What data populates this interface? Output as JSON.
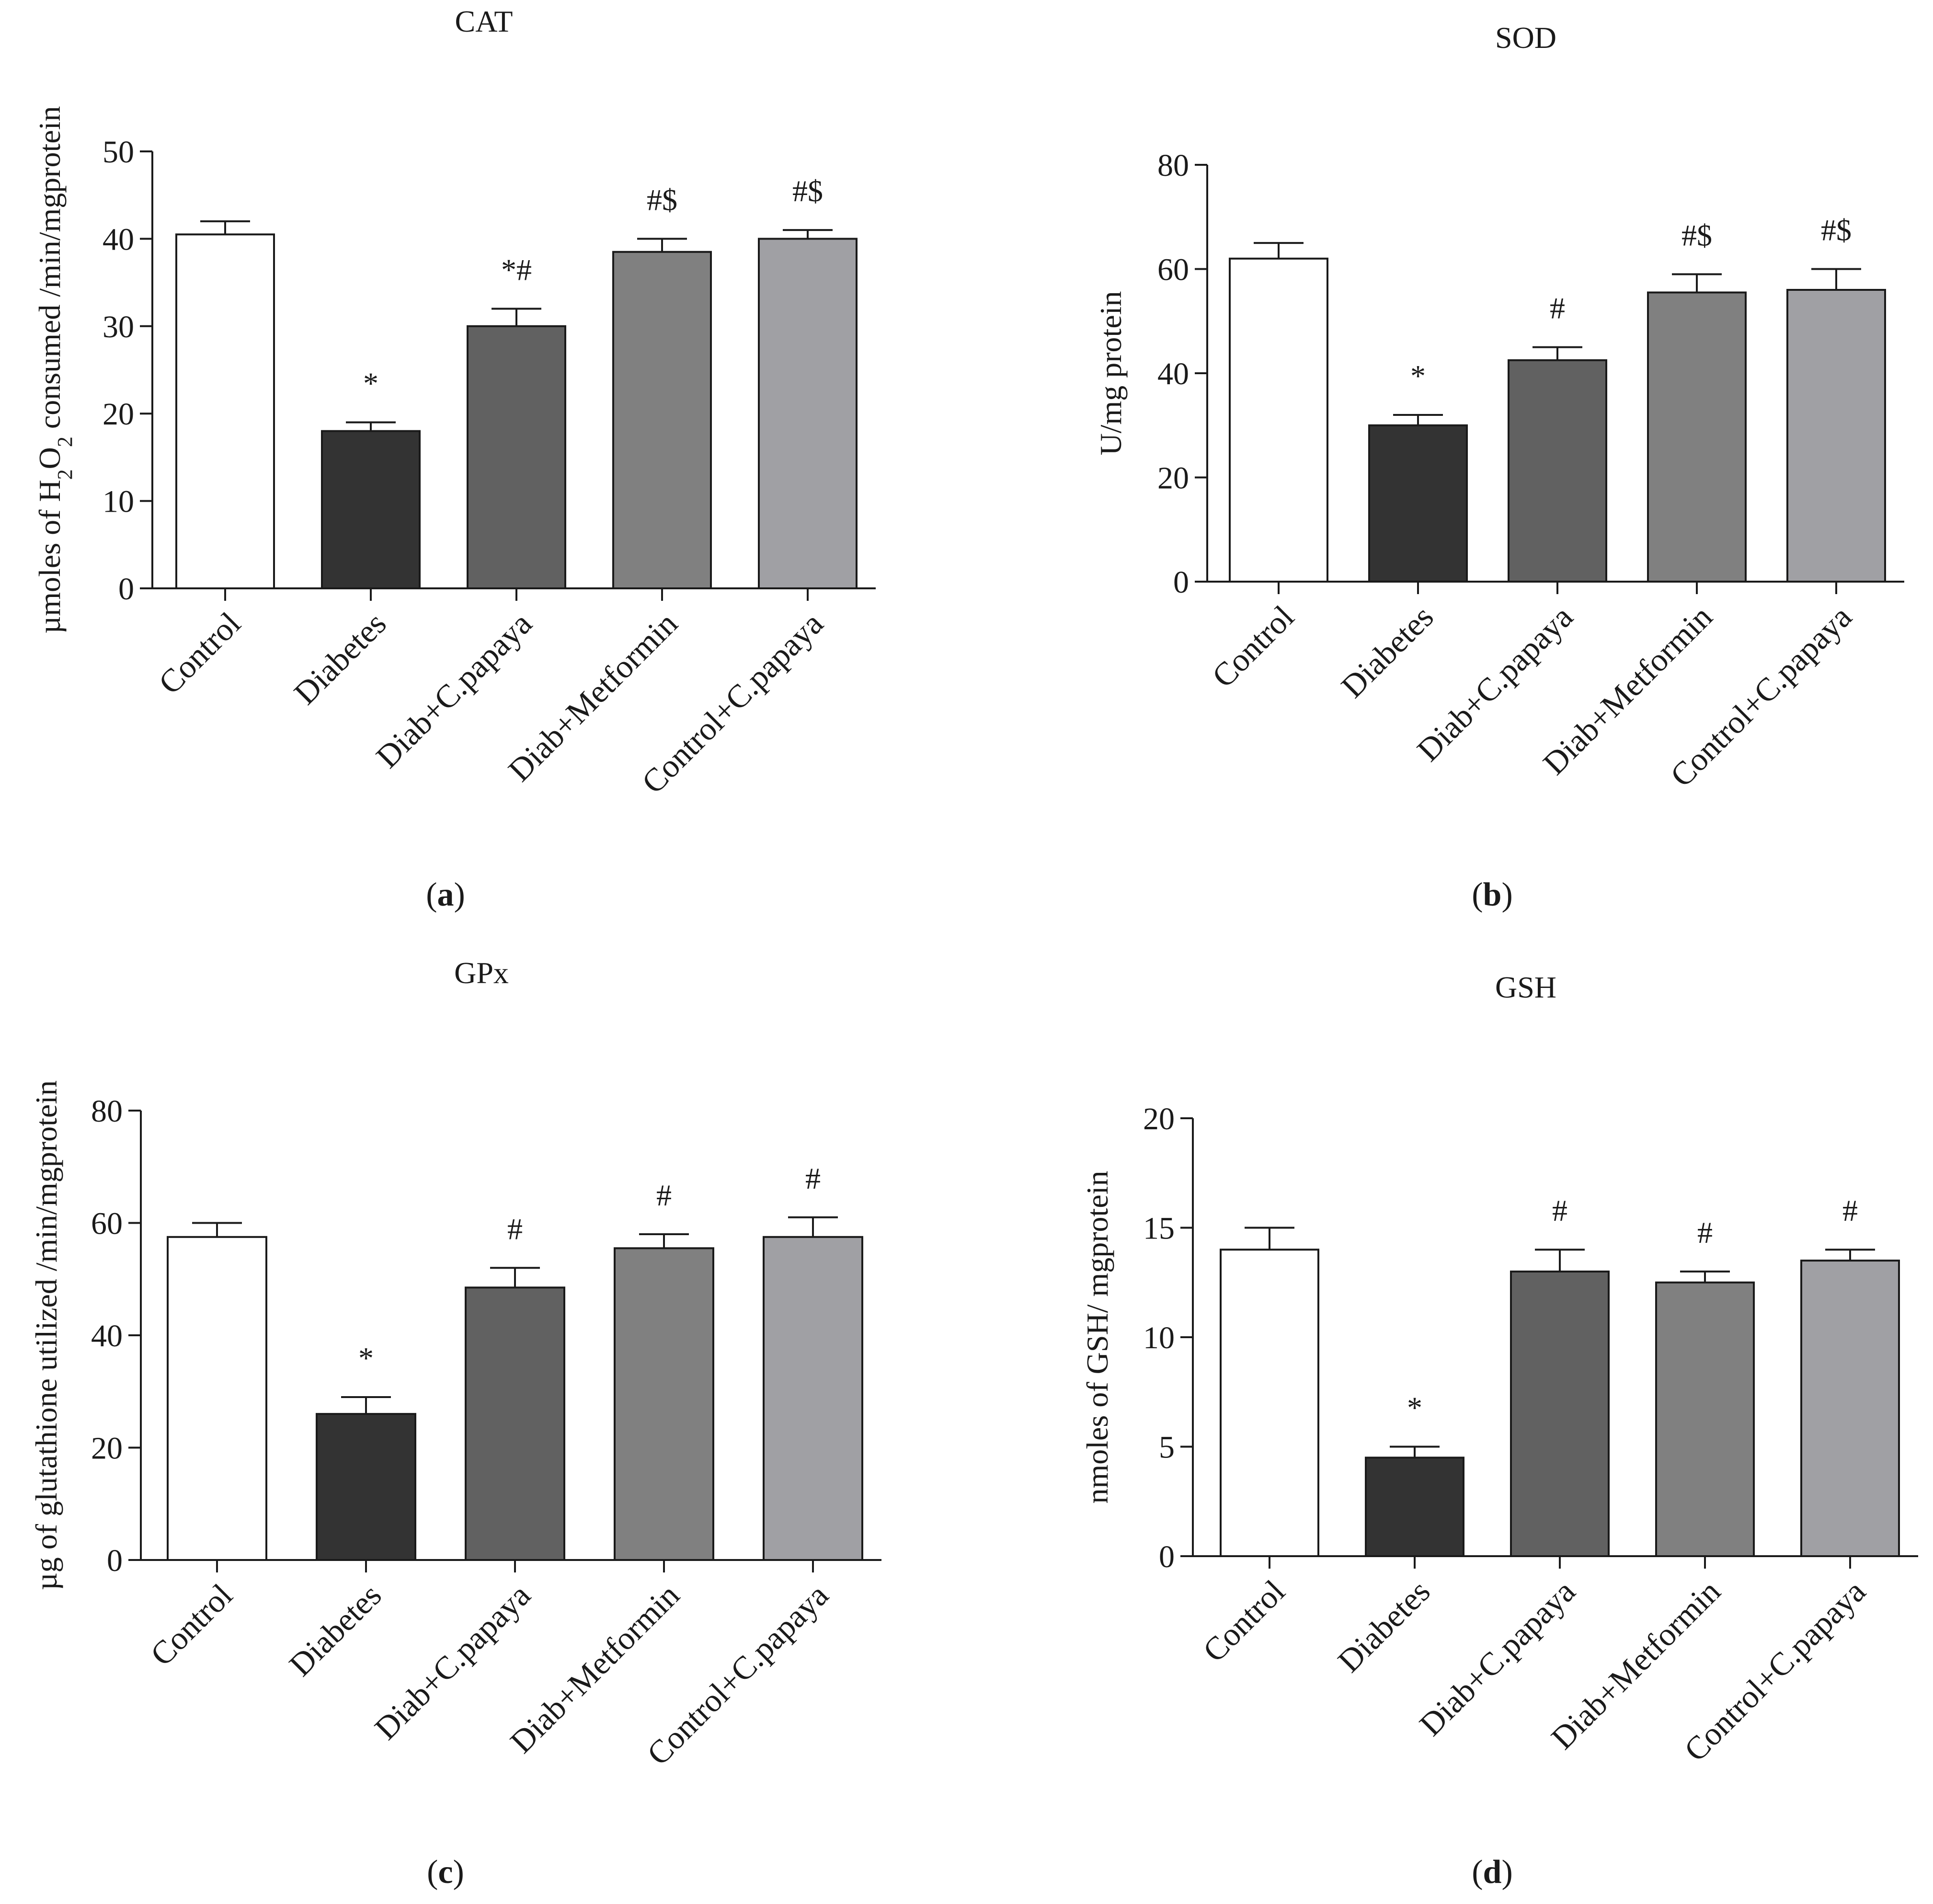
{
  "chart_data": [
    {
      "type": "bar",
      "panel_label": "a",
      "title": "CAT",
      "ylabel": "µmoles of H2O2 consumed /min/mgprotein",
      "ylabel_parts": [
        "µmoles of H",
        "2",
        "O",
        "2",
        " consumed /min/mgprotein"
      ],
      "ylim": [
        0,
        50
      ],
      "yticks": [
        0,
        10,
        20,
        30,
        40,
        50
      ],
      "categories": [
        "Control",
        "Diabetes",
        "Diab+C.papaya",
        "Diab+Metformin",
        "Control+C.papaya"
      ],
      "values": [
        40.5,
        18,
        30,
        38.5,
        40
      ],
      "errors": [
        1.5,
        1,
        2,
        1.5,
        1
      ],
      "annotations": [
        "",
        "*",
        "*#",
        "#$",
        "#$"
      ],
      "bar_colors": [
        "#ffffff",
        "#333333",
        "#616161",
        "#808080",
        "#a0a0a4"
      ]
    },
    {
      "type": "bar",
      "panel_label": "b",
      "title": "SOD",
      "ylabel": "U/mg protein",
      "ylim": [
        0,
        80
      ],
      "yticks": [
        0,
        20,
        40,
        60,
        80
      ],
      "categories": [
        "Control",
        "Diabetes",
        "Diab+C.papaya",
        "Diab+Metformin",
        "Control+C.papaya"
      ],
      "values": [
        62,
        30,
        42.5,
        55.5,
        56
      ],
      "errors": [
        3,
        2,
        2.5,
        3.5,
        4
      ],
      "annotations": [
        "",
        "*",
        "#",
        "#$",
        "#$"
      ],
      "bar_colors": [
        "#ffffff",
        "#333333",
        "#616161",
        "#808080",
        "#a0a0a4"
      ]
    },
    {
      "type": "bar",
      "panel_label": "c",
      "title": "GPx",
      "ylabel": "µg of glutathione utilized /min/mgprotein",
      "ylim": [
        0,
        80
      ],
      "yticks": [
        0,
        20,
        40,
        60,
        80
      ],
      "categories": [
        "Control",
        "Diabetes",
        "Diab+C.papaya",
        "Diab+Metformin",
        "Control+C.papaya"
      ],
      "values": [
        57.5,
        26,
        48.5,
        55.5,
        57.5
      ],
      "errors": [
        2.5,
        3,
        3.5,
        2.5,
        3.5
      ],
      "annotations": [
        "",
        "*",
        "#",
        "#",
        "#"
      ],
      "bar_colors": [
        "#ffffff",
        "#333333",
        "#616161",
        "#808080",
        "#a0a0a4"
      ]
    },
    {
      "type": "bar",
      "panel_label": "d",
      "title": "GSH",
      "ylabel": "nmoles of GSH/ mgprotein",
      "ylim": [
        0,
        20
      ],
      "yticks": [
        0,
        5,
        10,
        15,
        20
      ],
      "categories": [
        "Control",
        "Diabetes",
        "Diab+C.papaya",
        "Diab+Metformin",
        "Control+C.papaya"
      ],
      "values": [
        14,
        4.5,
        13,
        12.5,
        13.5
      ],
      "errors": [
        1,
        0.5,
        1,
        0.5,
        0.5
      ],
      "annotations": [
        "",
        "*",
        "#",
        "#",
        "#"
      ],
      "bar_colors": [
        "#ffffff",
        "#333333",
        "#616161",
        "#808080",
        "#a0a0a4"
      ]
    }
  ]
}
